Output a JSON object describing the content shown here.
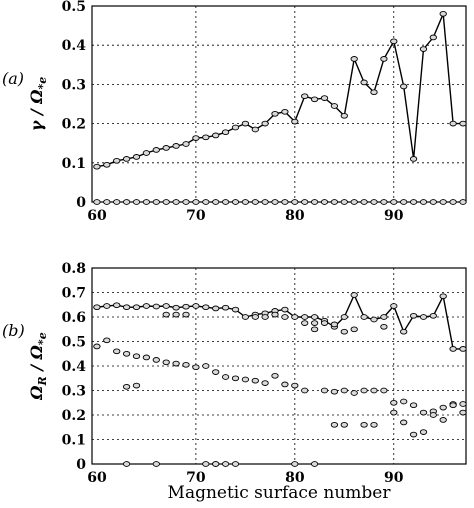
{
  "figure": {
    "xlabel": "Magnetic surface number",
    "panels": [
      {
        "label": "(a)",
        "ylabel": "γ / Ω*e",
        "ylabel_main": "γ / Ω",
        "ylabel_sub": "*e",
        "xlim": [
          59.5,
          97.3
        ],
        "ylim": [
          0,
          0.5
        ],
        "xticks": [
          60,
          70,
          80,
          90
        ],
        "yticks": [
          0,
          0.1,
          0.2,
          0.3,
          0.4,
          0.5
        ],
        "ytick_labels": [
          "0",
          "0.1",
          "0.2",
          "0.3",
          "0.4",
          "0.5"
        ],
        "grid": true
      },
      {
        "label": "(b)",
        "ylabel": "ΩR / Ω*e",
        "ylabel_main": "Ω",
        "ylabel_sub1": "R",
        "ylabel_mid": " / Ω",
        "ylabel_sub2": "*e",
        "xlim": [
          59.5,
          97.3
        ],
        "ylim": [
          0,
          0.8
        ],
        "xticks": [
          60,
          70,
          80,
          90
        ],
        "yticks": [
          0,
          0.1,
          0.2,
          0.3,
          0.4,
          0.5,
          0.6,
          0.7,
          0.8
        ],
        "ytick_labels": [
          "0",
          "0.1",
          "0.2",
          "0.3",
          "0.4",
          "0.5",
          "0.6",
          "0.7",
          "0.8"
        ],
        "grid": true
      }
    ]
  },
  "chart_data": [
    {
      "type": "line",
      "panel": "(a)",
      "xlabel": "Magnetic surface number",
      "ylabel": "γ / Ω*e",
      "xlim": [
        59.5,
        97.3
      ],
      "ylim": [
        0,
        0.5
      ],
      "series": [
        {
          "style": "line-with-markers",
          "x": [
            60,
            61,
            62,
            63,
            64,
            65,
            66,
            67,
            68,
            69,
            70,
            71,
            72,
            73,
            74,
            75,
            76,
            77,
            78,
            79,
            80,
            81,
            82,
            83,
            84,
            85,
            86,
            87,
            88,
            89,
            90,
            91,
            92,
            93,
            94,
            95,
            96,
            97
          ],
          "y": [
            0.09,
            0.095,
            0.105,
            0.11,
            0.115,
            0.125,
            0.133,
            0.138,
            0.143,
            0.148,
            0.163,
            0.165,
            0.17,
            0.178,
            0.19,
            0.2,
            0.185,
            0.2,
            0.225,
            0.23,
            0.205,
            0.27,
            0.262,
            0.265,
            0.245,
            0.22,
            0.365,
            0.305,
            0.28,
            0.365,
            0.41,
            0.295,
            0.11,
            0.39,
            0.42,
            0.48,
            0.2,
            0.2
          ]
        },
        {
          "style": "markers",
          "x": [
            60,
            61,
            62,
            63,
            64,
            65,
            66,
            67,
            68,
            69,
            70,
            71,
            72,
            73,
            74,
            75,
            76,
            77,
            78,
            79,
            80,
            81,
            82,
            83,
            84,
            85,
            86,
            87,
            88,
            89,
            90,
            91,
            92,
            93,
            94,
            95,
            96,
            97
          ],
          "y": [
            0,
            0,
            0,
            0,
            0,
            0,
            0,
            0,
            0,
            0,
            0,
            0,
            0,
            0,
            0,
            0,
            0,
            0,
            0,
            0,
            0,
            0,
            0,
            0,
            0,
            0,
            0,
            0,
            0,
            0,
            0,
            0,
            0,
            0,
            0,
            0,
            0,
            0
          ]
        }
      ]
    },
    {
      "type": "line",
      "panel": "(b)",
      "xlabel": "Magnetic surface number",
      "ylabel": "ΩR / Ω*e",
      "xlim": [
        59.5,
        97.3
      ],
      "ylim": [
        0,
        0.8
      ],
      "series": [
        {
          "style": "line-with-markers",
          "x": [
            60,
            61,
            62,
            63,
            64,
            65,
            66,
            67,
            68,
            69,
            70,
            71,
            72,
            73,
            74,
            75,
            76,
            77,
            78,
            79,
            80,
            81,
            82,
            83,
            84,
            85,
            86,
            87,
            88,
            89,
            90,
            91,
            92,
            93,
            94,
            95,
            96,
            97
          ],
          "y": [
            0.64,
            0.645,
            0.648,
            0.64,
            0.64,
            0.645,
            0.643,
            0.645,
            0.638,
            0.642,
            0.645,
            0.64,
            0.635,
            0.638,
            0.63,
            0.6,
            0.61,
            0.615,
            0.625,
            0.63,
            0.6,
            0.6,
            0.6,
            0.585,
            0.56,
            0.6,
            0.69,
            0.6,
            0.59,
            0.6,
            0.645,
            0.54,
            0.605,
            0.6,
            0.605,
            0.685,
            0.47,
            0.47
          ]
        },
        {
          "style": "markers",
          "x": [
            60,
            61,
            62,
            63,
            64,
            65,
            66,
            67,
            68,
            69,
            70,
            71,
            72,
            73,
            74,
            75,
            76,
            77,
            78,
            79,
            80,
            81,
            82,
            83,
            84,
            85,
            86,
            87,
            88,
            89,
            90,
            91,
            92,
            93,
            94,
            95,
            96,
            97
          ],
          "y": [
            0.48,
            0.505,
            0.46,
            0.45,
            0.44,
            0.435,
            0.425,
            0.415,
            0.41,
            0.405,
            0.395,
            0.4,
            0.375,
            0.355,
            0.35,
            0.345,
            0.34,
            0.33,
            0.36,
            0.325,
            0.32,
            0.3,
            0.55,
            0.3,
            0.295,
            0.3,
            0.29,
            0.3,
            0.3,
            0.3,
            0.25,
            0.255,
            0.24,
            0.21,
            0.215,
            0.23,
            0.245,
            0.245
          ]
        },
        {
          "style": "markers",
          "x": [
            63,
            64,
            67,
            68,
            69,
            72,
            76,
            77,
            78,
            79,
            81,
            82,
            83,
            84,
            85,
            86,
            87,
            88,
            89,
            90,
            91,
            92,
            93,
            94,
            95,
            96,
            97
          ],
          "y": [
            0.315,
            0.32,
            0.61,
            0.61,
            0.61,
            0.0,
            0.6,
            0.6,
            0.61,
            0.6,
            0.575,
            0.575,
            0.575,
            0.57,
            0.54,
            0.55,
            0.16,
            0.16,
            0.56,
            0.21,
            0.17,
            0.12,
            0.13,
            0.2,
            0.18,
            0.24,
            0.21
          ]
        },
        {
          "style": "markers",
          "x": [
            63,
            66,
            71,
            72,
            73,
            74,
            80,
            82,
            84,
            85
          ],
          "y": [
            0.0,
            0.0,
            0.0,
            0.0,
            0.0,
            0.0,
            0.0,
            0.0,
            0.16,
            0.16
          ]
        }
      ]
    }
  ]
}
